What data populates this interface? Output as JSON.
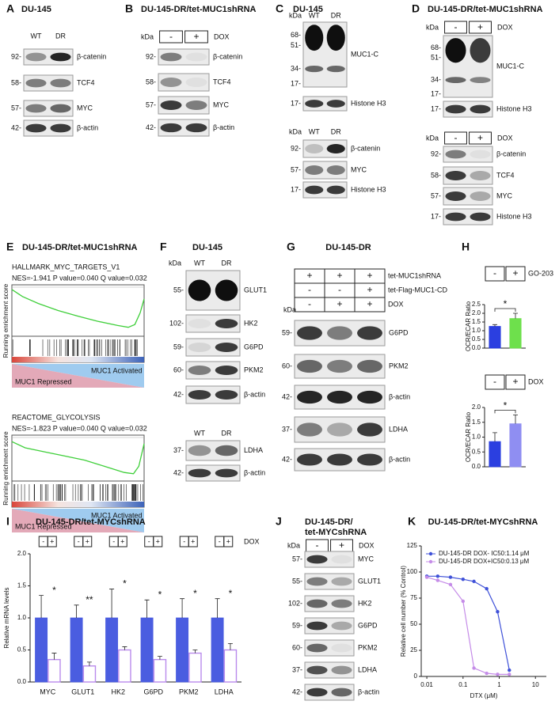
{
  "panels": [
    {
      "letter": "A",
      "title": "DU-145",
      "blots": [
        {
          "lanes": [
            "WT",
            "DR"
          ],
          "rows": [
            {
              "kda": "92-",
              "label": "β-catenin"
            },
            {
              "kda": "58-",
              "label": "TCF4"
            },
            {
              "kda": "57-",
              "label": "MYC"
            },
            {
              "kda": "42-",
              "label": "β-actin"
            }
          ]
        }
      ]
    },
    {
      "letter": "B",
      "title": "DU-145-DR/tet-MUC1shRNA",
      "blots": [
        {
          "kda": "kDa",
          "lanes": [
            "-",
            "+"
          ],
          "treatment": "DOX",
          "rows": [
            {
              "kda": "92-",
              "label": "β-catenin"
            },
            {
              "kda": "58-",
              "label": "TCF4"
            },
            {
              "kda": "57-",
              "label": "MYC"
            },
            {
              "kda": "42-",
              "label": "β-actin"
            }
          ]
        }
      ]
    },
    {
      "letter": "C",
      "title": "DU-145",
      "blots": [
        {
          "kda": "kDa",
          "lanes": [
            "WT",
            "DR"
          ],
          "rows": [
            {
              "markers": [
                "68-",
                "51-",
                "34-",
                "17-"
              ],
              "label": "MUC1-C"
            },
            {
              "kda": "17-",
              "label": "Histone H3"
            }
          ]
        },
        {
          "kda": "kDa",
          "lanes": [
            "WT",
            "DR"
          ],
          "rows": [
            {
              "kda": "92-",
              "label": "β-catenin"
            },
            {
              "kda": "57-",
              "label": "MYC"
            },
            {
              "kda": "17-",
              "label": "Histone H3"
            }
          ]
        }
      ]
    },
    {
      "letter": "D",
      "title": "DU-145-DR/tet-MUC1shRNA",
      "blots": [
        {
          "kda": "kDa",
          "lanes": [
            "-",
            "+"
          ],
          "treatment": "DOX",
          "rows": [
            {
              "markers": [
                "68-",
                "51-",
                "34-",
                "17-"
              ],
              "label": "MUC1-C"
            },
            {
              "kda": "17-",
              "label": "Histone H3"
            }
          ]
        },
        {
          "kda": "kDa",
          "lanes": [
            "-",
            "+"
          ],
          "treatment": "DOX",
          "rows": [
            {
              "kda": "92-",
              "label": "β-catenin"
            },
            {
              "kda": "58-",
              "label": "TCF4"
            },
            {
              "kda": "57-",
              "label": "MYC"
            },
            {
              "kda": "17-",
              "label": "Histone H3"
            }
          ]
        }
      ]
    },
    {
      "letter": "F",
      "title": "DU-145",
      "blots": [
        {
          "kda": "kDa",
          "lanes": [
            "WT",
            "DR"
          ],
          "rows": [
            {
              "kda": "55-",
              "label": "GLUT1"
            },
            {
              "kda": "102-",
              "label": "HK2"
            },
            {
              "kda": "59-",
              "label": "G6PD"
            },
            {
              "kda": "60-",
              "label": "PKM2"
            },
            {
              "kda": "42-",
              "label": "β-actin"
            }
          ]
        },
        {
          "lanes": [
            "WT",
            "DR"
          ],
          "rows": [
            {
              "kda": "37-",
              "label": "LDHA"
            },
            {
              "kda": "42-",
              "label": "β-actin"
            }
          ]
        }
      ]
    },
    {
      "letter": "G",
      "title": "DU-145-DR",
      "blots": [
        {
          "kda": "kDa",
          "conditions": [
            {
              "label": "tet-MUC1shRNA",
              "signs": [
                "+",
                "+",
                "+"
              ]
            },
            {
              "label": "tet-Flag-MUC1-CD",
              "signs": [
                "-",
                "-",
                "+"
              ]
            },
            {
              "label": "DOX",
              "signs": [
                "-",
                "+",
                "+"
              ]
            }
          ],
          "rows": [
            {
              "kda": "59-",
              "label": "G6PD"
            },
            {
              "kda": "60-",
              "label": "PKM2"
            },
            {
              "kda": "42-",
              "label": "β-actin"
            },
            {
              "kda": "37-",
              "label": "LDHA"
            },
            {
              "kda": "42-",
              "label": "β-actin"
            }
          ]
        }
      ]
    },
    {
      "letter": "J",
      "title": [
        "DU-145-DR/",
        "tet-MYCshRNA"
      ],
      "blots": [
        {
          "kda": "kDa",
          "lanes": [
            "-",
            "+"
          ],
          "treatment": "DOX",
          "rows": [
            {
              "kda": "57-",
              "label": "MYC"
            },
            {
              "kda": "55-",
              "label": "GLUT1"
            },
            {
              "kda": "102-",
              "label": "HK2"
            },
            {
              "kda": "59-",
              "label": "G6PD"
            },
            {
              "kda": "60-",
              "label": "PKM2"
            },
            {
              "kda": "37-",
              "label": "LDHA"
            },
            {
              "kda": "42-",
              "label": "β-actin"
            }
          ]
        }
      ]
    }
  ],
  "gsea": {
    "letter": "E",
    "title": "DU-145-DR/tet-MUC1shRNA",
    "ylabel": "Running enrichment score",
    "plots": [
      {
        "name": "HALLMARK_MYC_TARGETS_V1",
        "stats": "NES=-1.941 P value=0.040 Q value=0.032",
        "activated": "MUC1 Activated",
        "repressed": "MUC1 Repressed"
      },
      {
        "name": "REACTOME_GLYCOLYSIS",
        "stats": "NES=-1.823 P value=0.040 Q value=0.032",
        "activated": "MUC1 Activated",
        "repressed": "MUC1 Repressed"
      }
    ]
  },
  "chart_data": [
    {
      "type": "bar",
      "panel": "H",
      "treatment": "GO-203",
      "categories": [
        "-",
        "+"
      ],
      "values": [
        1.25,
        1.7
      ],
      "errors": [
        0.1,
        0.3
      ],
      "colors": [
        "#2b3fe0",
        "#6ee04c"
      ],
      "ylabel": "OCR/ECAR Ratio",
      "ylim": [
        0,
        2.5
      ],
      "yticks": [
        {
          "value": 0,
          "label": "0.0"
        },
        {
          "value": 0.5,
          "label": "0.5"
        },
        {
          "value": 1,
          "label": "1.0"
        },
        {
          "value": 1.5,
          "label": "1.5"
        },
        {
          "value": 2,
          "label": "2.0"
        },
        {
          "value": 2.5,
          "label": "2.5"
        }
      ],
      "significance": "*"
    },
    {
      "type": "bar",
      "treatment": "DOX",
      "categories": [
        "-",
        "+"
      ],
      "values": [
        0.85,
        1.45
      ],
      "errors": [
        0.3,
        0.3
      ],
      "colors": [
        "#2b3fe0",
        "#8f8ef2"
      ],
      "ylabel": "OCR/ECAR Ratio",
      "ylim": [
        0,
        2
      ],
      "yticks": [
        {
          "value": 0,
          "label": "0.0"
        },
        {
          "value": 0.5,
          "label": "0.5"
        },
        {
          "value": 1,
          "label": "1.0"
        },
        {
          "value": 1.5,
          "label": "1.5"
        },
        {
          "value": 2,
          "label": "2.0"
        }
      ],
      "significance": "*"
    },
    {
      "type": "bar",
      "panel": "I",
      "title": "DU-145-DR/tet-MYCshRNA",
      "treatment": "DOX",
      "categories": [
        "MYC",
        "GLUT1",
        "HK2",
        "G6PD",
        "PKM2",
        "LDHA"
      ],
      "series": [
        {
          "name": "-",
          "color": "#4a5de0",
          "values": [
            1,
            1,
            1,
            1,
            1,
            1
          ],
          "errors": [
            0.35,
            0.2,
            0.45,
            0.28,
            0.3,
            0.3
          ]
        },
        {
          "name": "+",
          "color": "#b98aec",
          "values": [
            0.35,
            0.25,
            0.5,
            0.35,
            0.45,
            0.5
          ],
          "errors": [
            0.1,
            0.06,
            0.05,
            0.05,
            0.05,
            0.1
          ]
        }
      ],
      "ylabel": "Relative mRNA levels",
      "ylim": [
        0,
        2
      ],
      "yticks": [
        {
          "value": 0,
          "label": "0.0"
        },
        {
          "value": 0.5,
          "label": "0.5"
        },
        {
          "value": 1,
          "label": "1.0"
        },
        {
          "value": 1.5,
          "label": "1.5"
        },
        {
          "value": 2,
          "label": "2.0"
        }
      ],
      "significance": [
        "*",
        "**",
        "*",
        "*",
        "*",
        "*"
      ]
    },
    {
      "type": "line",
      "panel": "K",
      "title": "DU-145-DR/tet-MYCshRNA",
      "x": [
        0.01,
        0.02,
        0.045,
        0.1,
        0.2,
        0.45,
        0.9,
        1.9
      ],
      "series": [
        {
          "name": "DU-145-DR DOX- IC50:1.14  μM",
          "color": "#3f51d8",
          "values": [
            96,
            96,
            95,
            93,
            91,
            84,
            62,
            6
          ]
        },
        {
          "name": "DU-145-DR DOX+IC50:0.13  μM",
          "color": "#c58ce8",
          "values": [
            95,
            92,
            88,
            72,
            8,
            3,
            2,
            2
          ]
        }
      ],
      "xlabel": "DTX (μM)",
      "ylabel": "Relative cell number (% Control)",
      "log_x": true,
      "xlim": [
        0.007,
        20
      ],
      "xticks": [
        0.01,
        0.1,
        1,
        10
      ],
      "ylim": [
        0,
        125
      ],
      "yticks": [
        0,
        25,
        50,
        75,
        100,
        125
      ]
    }
  ]
}
